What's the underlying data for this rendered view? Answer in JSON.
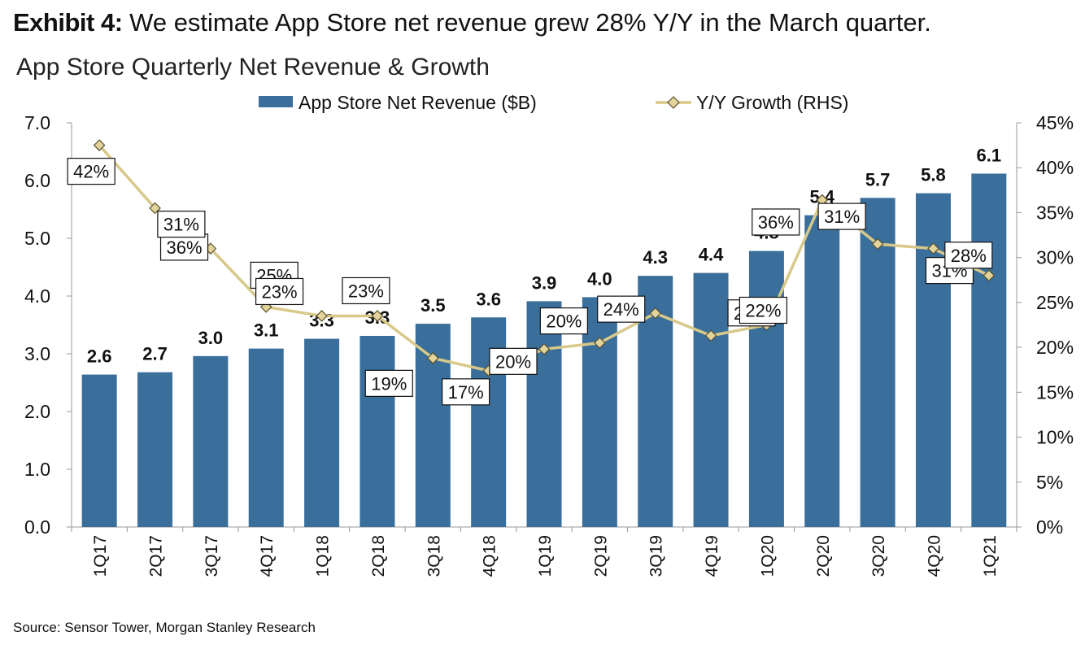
{
  "exhibit": {
    "label": "Exhibit 4:",
    "text": "We estimate App Store net revenue grew 28% Y/Y in the March quarter."
  },
  "source": "Source: Sensor Tower, Morgan Stanley Research",
  "colors": {
    "bar": "#3a6e9b",
    "line": "#d8c98a",
    "marker": "#e2d49a",
    "marker_stroke": "#5a5030"
  },
  "chart_data": {
    "type": "bar",
    "title": "App Store Quarterly Net Revenue & Growth",
    "categories": [
      "1Q17",
      "2Q17",
      "3Q17",
      "4Q17",
      "1Q18",
      "2Q18",
      "3Q18",
      "4Q18",
      "1Q19",
      "2Q19",
      "3Q19",
      "4Q19",
      "1Q20",
      "2Q20",
      "3Q20",
      "4Q20",
      "1Q21"
    ],
    "series": [
      {
        "name": "App Store Net Revenue ($B)",
        "type": "bar",
        "axis": "left",
        "values": [
          2.64,
          2.68,
          2.96,
          3.09,
          3.26,
          3.31,
          3.52,
          3.63,
          3.91,
          3.98,
          4.35,
          4.4,
          4.78,
          5.4,
          5.7,
          5.78,
          6.12
        ],
        "labels": [
          "2.6",
          "2.7",
          "3.0",
          "3.1",
          "3.3",
          "3.3",
          "3.5",
          "3.6",
          "3.9",
          "4.0",
          "4.3",
          "4.4",
          "4.8",
          "5.4",
          "5.7",
          "5.8",
          "6.1"
        ]
      },
      {
        "name": "Y/Y Growth (RHS)",
        "type": "line",
        "axis": "right",
        "values": [
          42.5,
          35.5,
          31.0,
          24.5,
          23.5,
          23.5,
          18.8,
          17.4,
          19.8,
          20.5,
          23.8,
          21.3,
          22.5,
          36.4,
          31.5,
          31.0,
          28.0
        ],
        "labels": [
          "42%",
          "36%",
          "31%",
          "25%",
          "23%",
          "23%",
          "19%",
          "17%",
          "20%",
          "20%",
          "24%",
          "21%",
          "22%",
          "36%",
          "31%",
          "31%",
          "28%"
        ]
      }
    ],
    "y_left": {
      "min": 0,
      "max": 7,
      "ticks": [
        "0.0",
        "1.0",
        "2.0",
        "3.0",
        "4.0",
        "5.0",
        "6.0",
        "7.0"
      ]
    },
    "y_right": {
      "min": 0,
      "max": 45,
      "ticks": [
        "0%",
        "5%",
        "10%",
        "15%",
        "20%",
        "25%",
        "30%",
        "35%",
        "40%",
        "45%"
      ]
    },
    "legend": "top-center",
    "grid": false
  }
}
